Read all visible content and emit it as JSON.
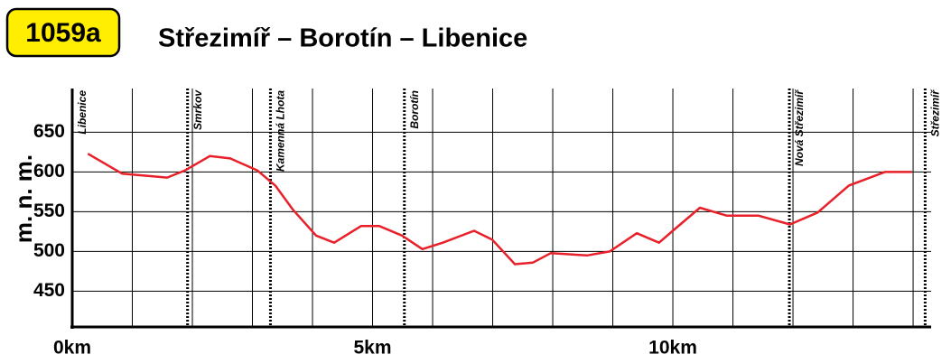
{
  "badge": "1059a",
  "chart_data": {
    "type": "line",
    "title": "Střezimíř – Borotín – Libenice",
    "ylabel": "m. n. m.",
    "xlim": [
      0,
      14.3
    ],
    "ylim": [
      405,
      705
    ],
    "yticks": [
      450,
      500,
      550,
      600,
      650
    ],
    "xticks": [
      {
        "value": 0,
        "label": "0km"
      },
      {
        "value": 5,
        "label": "5km"
      },
      {
        "value": 10,
        "label": "10km"
      }
    ],
    "xgrid": [
      0,
      1,
      2,
      3,
      4,
      5,
      6,
      7,
      8,
      9,
      10,
      11,
      12,
      13,
      14
    ],
    "grid": true,
    "stops": [
      {
        "name": "Libenice",
        "km": 0
      },
      {
        "name": "Smrkov",
        "km": 1.92
      },
      {
        "name": "Kamenná Lhota",
        "km": 3.3
      },
      {
        "name": "Borotín",
        "km": 5.53
      },
      {
        "name": "Nová Střezimíř",
        "km": 11.94
      },
      {
        "name": "Střezimíř",
        "km": 14.2
      }
    ],
    "x": [
      0.26,
      0.83,
      1.58,
      1.88,
      2.29,
      2.63,
      3.08,
      3.38,
      3.68,
      4.06,
      4.36,
      4.81,
      5.11,
      5.49,
      5.83,
      6.17,
      6.69,
      6.99,
      7.37,
      7.67,
      7.97,
      8.57,
      8.95,
      9.4,
      9.77,
      10.0,
      10.45,
      10.9,
      11.43,
      11.95,
      12.41,
      12.93,
      13.53,
      13.98
    ],
    "series": [
      {
        "color": "#e8202a",
        "values": [
          623,
          598,
          593,
          602,
          620,
          617,
          602,
          583,
          552,
          520,
          511,
          532,
          532,
          520,
          503,
          511,
          526,
          515,
          484,
          486,
          498,
          495,
          500,
          523,
          511,
          526,
          555,
          545,
          545,
          534,
          549,
          583,
          600,
          600
        ]
      }
    ]
  }
}
